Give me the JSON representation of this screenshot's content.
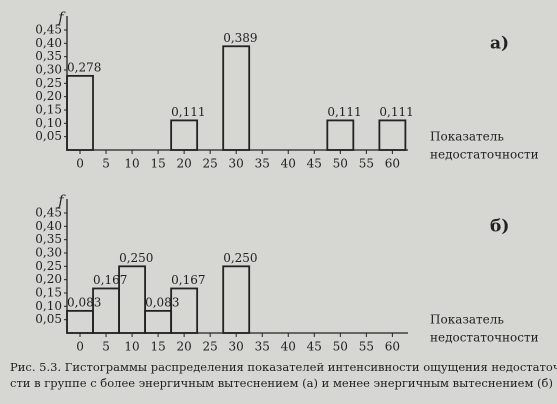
{
  "chart_data": [
    {
      "type": "bar",
      "panel_label": "а)",
      "y_label": "f",
      "x_label": [
        "Показатель",
        "недостаточности"
      ],
      "x": [
        0,
        20,
        30,
        50,
        60
      ],
      "values": [
        0.278,
        0.111,
        0.389,
        0.111,
        0.111
      ],
      "value_labels": [
        "0,278",
        "0,111",
        "0,389",
        "0,111",
        "0,111"
      ],
      "color": "#222222",
      "xlim": [
        -2.5,
        63
      ],
      "xticks": [
        0,
        5,
        10,
        15,
        20,
        25,
        30,
        35,
        40,
        45,
        50,
        55,
        60
      ],
      "ylim": [
        0,
        0.48
      ],
      "yticks": [
        {
          "value": 0.05,
          "label": "0,05"
        },
        {
          "value": 0.1,
          "label": "0,10"
        },
        {
          "value": 0.15,
          "label": "0,15"
        },
        {
          "value": 0.2,
          "label": "0,20"
        },
        {
          "value": 0.25,
          "label": "0,25"
        },
        {
          "value": 0.3,
          "label": "0,30"
        },
        {
          "value": 0.35,
          "label": "0,35"
        },
        {
          "value": 0.4,
          "label": "0,40"
        },
        {
          "value": 0.45,
          "label": "0,45"
        }
      ]
    },
    {
      "type": "bar",
      "panel_label": "б)",
      "y_label": "f",
      "x_label": [
        "Показатель",
        "недостаточности"
      ],
      "x": [
        0,
        5,
        10,
        15,
        20,
        30
      ],
      "values": [
        0.083,
        0.167,
        0.25,
        0.083,
        0.167,
        0.25
      ],
      "value_labels": [
        "0,083",
        "0,167",
        "0,250",
        "0,083",
        "0,167",
        "0,250"
      ],
      "color": "#222222",
      "xlim": [
        -2.5,
        63
      ],
      "xticks": [
        0,
        5,
        10,
        15,
        20,
        25,
        30,
        35,
        40,
        45,
        50,
        55,
        60
      ],
      "ylim": [
        0,
        0.48
      ],
      "yticks": [
        {
          "value": 0.05,
          "label": "0,05"
        },
        {
          "value": 0.1,
          "label": "0,10"
        },
        {
          "value": 0.15,
          "label": "0,15"
        },
        {
          "value": 0.2,
          "label": "0,20"
        },
        {
          "value": 0.25,
          "label": "0,25"
        },
        {
          "value": 0.3,
          "label": "0,30"
        },
        {
          "value": 0.35,
          "label": "0,35"
        },
        {
          "value": 0.4,
          "label": "0,40"
        },
        {
          "value": 0.45,
          "label": "0,45"
        }
      ]
    }
  ],
  "caption": [
    "Рис. 5.3. Гистограммы распределения показателей интенсивности ощущения недостаточно-",
    "сти в группе с более энергичным вытеснением (а) и менее энергичным вытеснением (б)"
  ]
}
